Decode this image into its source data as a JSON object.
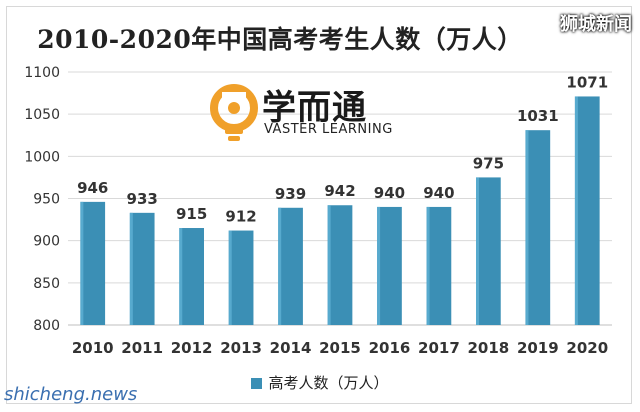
{
  "chart_data": {
    "type": "bar",
    "title": "2010-2020年中国高考考生人数（万人）",
    "categories": [
      "2010",
      "2011",
      "2012",
      "2013",
      "2014",
      "2015",
      "2016",
      "2017",
      "2018",
      "2019",
      "2020"
    ],
    "series": [
      {
        "name": "高考人数（万人）",
        "values": [
          946,
          933,
          915,
          912,
          939,
          942,
          940,
          940,
          975,
          1031,
          1071
        ]
      }
    ],
    "ylim": [
      800,
      1100
    ],
    "yticks": [
      800,
      850,
      900,
      950,
      1000,
      1050,
      1100
    ],
    "grid": true,
    "legend_position": "bottom",
    "bar_color": "#3b8fb5"
  },
  "logo": {
    "main": "学而通",
    "sub": "VASTER LEARNING",
    "accent": "#f0a02a"
  },
  "watermarks": {
    "top": "狮城新闻",
    "bottom": "shicheng.news"
  }
}
